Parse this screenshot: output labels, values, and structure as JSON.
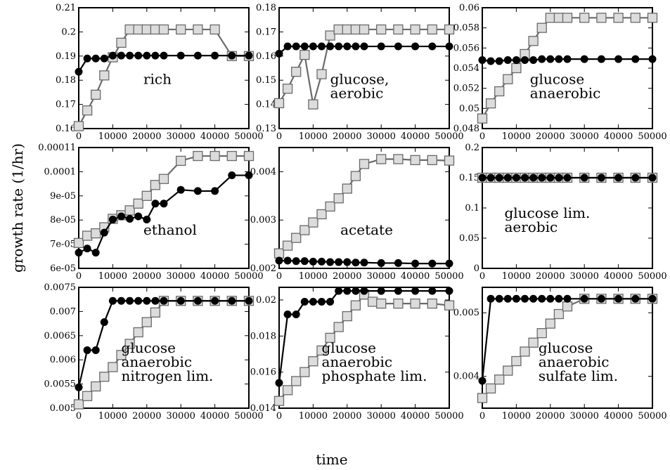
{
  "xlabel": "time",
  "ylabel": "growth rate (1/hr)",
  "series_colors": {
    "gray": "#dcdcdc",
    "gray_edge": "#6a6a6a",
    "black": "#000000"
  },
  "chart_data": [
    {
      "type": "line",
      "label": [
        "rich"
      ],
      "xlim": [
        0,
        50000
      ],
      "ylim": [
        0.16,
        0.21
      ],
      "xticks": [
        "0",
        "10000",
        "20000",
        "30000",
        "40000",
        "50000"
      ],
      "yticks": [
        "0.16",
        "0.17",
        "0.18",
        "0.19",
        "0.2",
        "0.21"
      ],
      "series": [
        {
          "x": [
            0,
            2500,
            5000,
            7500,
            10000,
            12500,
            15000,
            17500,
            20000,
            22500,
            25000,
            30000,
            35000,
            40000,
            45000,
            50000
          ],
          "values": [
            0.161,
            0.1675,
            0.174,
            0.182,
            0.1895,
            0.1955,
            0.201,
            0.201,
            0.201,
            0.201,
            0.201,
            0.201,
            0.201,
            0.201,
            0.19,
            0.19
          ]
        },
        {
          "x": [
            0,
            2500,
            5000,
            7500,
            10000,
            12500,
            15000,
            17500,
            20000,
            22500,
            25000,
            30000,
            35000,
            40000,
            45000,
            50000
          ],
          "values": [
            0.1835,
            0.189,
            0.189,
            0.189,
            0.1902,
            0.1902,
            0.1902,
            0.1902,
            0.1902,
            0.1902,
            0.1902,
            0.1902,
            0.1902,
            0.1902,
            0.1902,
            0.1902
          ]
        }
      ]
    },
    {
      "type": "line",
      "label": [
        "glucose,",
        "aerobic"
      ],
      "xlim": [
        0,
        50000
      ],
      "ylim": [
        0.13,
        0.18
      ],
      "xticks": [
        "0",
        "10000",
        "20000",
        "30000",
        "40000",
        "50000"
      ],
      "yticks": [
        "0.13",
        "0.14",
        "0.15",
        "0.16",
        "0.17",
        "0.18"
      ],
      "series": [
        {
          "x": [
            0,
            2500,
            5000,
            7500,
            10000,
            12500,
            15000,
            17500,
            20000,
            22500,
            25000,
            30000,
            35000,
            40000,
            45000,
            50000
          ],
          "values": [
            0.1405,
            0.1465,
            0.1535,
            0.1605,
            0.14,
            0.1525,
            0.1685,
            0.171,
            0.171,
            0.171,
            0.171,
            0.171,
            0.171,
            0.171,
            0.171,
            0.171
          ]
        },
        {
          "x": [
            0,
            2500,
            5000,
            7500,
            10000,
            12500,
            15000,
            17500,
            20000,
            22500,
            25000,
            30000,
            35000,
            40000,
            45000,
            50000
          ],
          "values": [
            0.161,
            0.164,
            0.164,
            0.164,
            0.164,
            0.164,
            0.164,
            0.164,
            0.164,
            0.164,
            0.164,
            0.164,
            0.164,
            0.164,
            0.164,
            0.164
          ]
        }
      ]
    },
    {
      "type": "line",
      "label": [
        "glucose",
        "anaerobic"
      ],
      "xlim": [
        0,
        50000
      ],
      "ylim": [
        0.048,
        0.06
      ],
      "xticks": [
        "0",
        "10000",
        "20000",
        "30000",
        "40000",
        "50000"
      ],
      "yticks": [
        "0.048",
        "0.05",
        "0.052",
        "0.054",
        "0.056",
        "0.058",
        "0.06"
      ],
      "series": [
        {
          "x": [
            0,
            2500,
            5000,
            7500,
            10000,
            12500,
            15000,
            17500,
            20000,
            22500,
            25000,
            30000,
            35000,
            40000,
            45000,
            50000
          ],
          "values": [
            0.049,
            0.0505,
            0.0517,
            0.0529,
            0.054,
            0.0554,
            0.0567,
            0.058,
            0.059,
            0.059,
            0.059,
            0.059,
            0.059,
            0.059,
            0.059,
            0.059
          ]
        },
        {
          "x": [
            0,
            2500,
            5000,
            7500,
            10000,
            12500,
            15000,
            17500,
            20000,
            22500,
            25000,
            30000,
            35000,
            40000,
            45000,
            50000
          ],
          "values": [
            0.0548,
            0.0547,
            0.0547,
            0.0548,
            0.0548,
            0.0548,
            0.0548,
            0.0549,
            0.0549,
            0.0549,
            0.0549,
            0.0549,
            0.0549,
            0.0549,
            0.0549,
            0.0549
          ]
        }
      ]
    },
    {
      "type": "line",
      "label": [
        "ethanol"
      ],
      "xlim": [
        0,
        50000
      ],
      "ylim": [
        6e-05,
        0.00011
      ],
      "xticks": [
        "0",
        "10000",
        "20000",
        "30000",
        "40000",
        "50000"
      ],
      "yticks": [
        "6e-05",
        "7e-05",
        "8e-05",
        "9e-05",
        "0.0001",
        "0.00011"
      ],
      "series": [
        {
          "x": [
            0,
            2500,
            5000,
            7500,
            10000,
            12500,
            15000,
            17500,
            20000,
            22500,
            25000,
            30000,
            35000,
            40000,
            45000,
            50000
          ],
          "values": [
            7.05e-05,
            7.35e-05,
            7.45e-05,
            7.7e-05,
            8.05e-05,
            8.2e-05,
            8.4e-05,
            8.68e-05,
            9e-05,
            9.45e-05,
            9.7e-05,
            0.0001045,
            0.0001065,
            0.0001065,
            0.0001065,
            0.0001065
          ]
        },
        {
          "x": [
            0,
            2500,
            5000,
            7500,
            10000,
            12500,
            15000,
            17500,
            20000,
            22500,
            25000,
            30000,
            35000,
            40000,
            45000,
            50000
          ],
          "values": [
            6.65e-05,
            6.82e-05,
            6.65e-05,
            7.48e-05,
            8.02e-05,
            8.15e-05,
            8.05e-05,
            8.15e-05,
            8.02e-05,
            8.68e-05,
            8.68e-05,
            9.25e-05,
            9.2e-05,
            9.2e-05,
            9.85e-05,
            9.85e-05
          ]
        }
      ]
    },
    {
      "type": "line",
      "label": [
        "acetate"
      ],
      "xlim": [
        0,
        50000
      ],
      "ylim": [
        0.002,
        0.0045
      ],
      "xticks": [
        "0",
        "10000",
        "20000",
        "30000",
        "40000",
        "50000"
      ],
      "yticks": [
        "0.002",
        "0.003",
        "0.004"
      ],
      "series": [
        {
          "x": [
            0,
            2500,
            5000,
            7500,
            10000,
            12500,
            15000,
            17500,
            20000,
            22500,
            25000,
            30000,
            35000,
            40000,
            45000,
            50000
          ],
          "values": [
            0.00231,
            0.00247,
            0.00263,
            0.00279,
            0.00295,
            0.00312,
            0.00328,
            0.00345,
            0.00365,
            0.00391,
            0.00416,
            0.00426,
            0.00426,
            0.00424,
            0.00424,
            0.00423
          ]
        },
        {
          "x": [
            0,
            2500,
            5000,
            7500,
            10000,
            12500,
            15000,
            17500,
            20000,
            22500,
            25000,
            30000,
            35000,
            40000,
            45000,
            50000
          ],
          "values": [
            0.00216,
            0.00216,
            0.00215,
            0.00215,
            0.00214,
            0.00214,
            0.00213,
            0.00213,
            0.00213,
            0.00212,
            0.00212,
            0.00211,
            0.00211,
            0.0021,
            0.0021,
            0.0021
          ]
        }
      ]
    },
    {
      "type": "line",
      "label": [
        "glucose lim.",
        "aerobic"
      ],
      "xlim": [
        0,
        50000
      ],
      "ylim": [
        0,
        0.2
      ],
      "xticks": [
        "0",
        "10000",
        "20000",
        "30000",
        "40000",
        "50000"
      ],
      "yticks": [
        "0",
        "0.05",
        "0.1",
        "0.15",
        "0.2"
      ],
      "series": [
        {
          "x": [
            0,
            2500,
            5000,
            7500,
            10000,
            12500,
            15000,
            17500,
            20000,
            22500,
            25000,
            30000,
            35000,
            40000,
            45000,
            50000
          ],
          "values": [
            0.15,
            0.15,
            0.15,
            0.15,
            0.15,
            0.15,
            0.15,
            0.15,
            0.15,
            0.15,
            0.15,
            0.15,
            0.15,
            0.15,
            0.15,
            0.15
          ]
        },
        {
          "x": [
            0,
            2500,
            5000,
            7500,
            10000,
            12500,
            15000,
            17500,
            20000,
            22500,
            25000,
            30000,
            35000,
            40000,
            45000,
            50000
          ],
          "values": [
            0.15,
            0.15,
            0.15,
            0.15,
            0.15,
            0.15,
            0.15,
            0.15,
            0.15,
            0.15,
            0.15,
            0.15,
            0.15,
            0.15,
            0.15,
            0.15
          ]
        }
      ]
    },
    {
      "type": "line",
      "label": [
        "glucose",
        "anaerobic",
        "nitrogen lim."
      ],
      "xlim": [
        0,
        50000
      ],
      "ylim": [
        0.005,
        0.0075
      ],
      "xticks": [
        "0",
        "10000",
        "20000",
        "30000",
        "40000",
        "50000"
      ],
      "yticks": [
        "0.005",
        "0.0055",
        "0.006",
        "0.0065",
        "0.007",
        "0.0075"
      ],
      "series": [
        {
          "x": [
            0,
            2500,
            5000,
            7500,
            10000,
            12500,
            15000,
            17500,
            20000,
            22500,
            25000,
            30000,
            35000,
            40000,
            45000,
            50000
          ],
          "values": [
            0.00508,
            0.00525,
            0.00545,
            0.00565,
            0.00585,
            0.0061,
            0.00633,
            0.00657,
            0.00678,
            0.00698,
            0.00722,
            0.00722,
            0.00722,
            0.00722,
            0.00722,
            0.00722
          ]
        },
        {
          "x": [
            0,
            2500,
            5000,
            7500,
            10000,
            12500,
            15000,
            17500,
            20000,
            22500,
            25000,
            30000,
            35000,
            40000,
            45000,
            50000
          ],
          "values": [
            0.00543,
            0.0062,
            0.0062,
            0.00678,
            0.00722,
            0.00722,
            0.00722,
            0.00722,
            0.00722,
            0.00722,
            0.00722,
            0.00722,
            0.00722,
            0.00722,
            0.00722,
            0.00722
          ]
        }
      ]
    },
    {
      "type": "line",
      "label": [
        "glucose",
        "anaerobic",
        "phosphate lim."
      ],
      "xlim": [
        0,
        50000
      ],
      "ylim": [
        0.014,
        0.0207
      ],
      "xticks": [
        "0",
        "10000",
        "20000",
        "30000",
        "40000",
        "50000"
      ],
      "yticks": [
        "0.014",
        "0.016",
        "0.018",
        "0.02"
      ],
      "series": [
        {
          "x": [
            0,
            2500,
            5000,
            7500,
            10000,
            12500,
            15000,
            17500,
            20000,
            22500,
            25000,
            27500,
            30000,
            35000,
            40000,
            45000,
            50000
          ],
          "values": [
            0.0144,
            0.015,
            0.0155,
            0.016,
            0.0166,
            0.0172,
            0.0179,
            0.0185,
            0.0191,
            0.0197,
            0.0203,
            0.0199,
            0.0198,
            0.0198,
            0.0198,
            0.0198,
            0.0197
          ]
        },
        {
          "x": [
            0,
            2500,
            5000,
            7500,
            10000,
            12500,
            15000,
            17500,
            20000,
            22500,
            25000,
            30000,
            35000,
            40000,
            45000,
            50000
          ],
          "values": [
            0.0154,
            0.0192,
            0.0192,
            0.0199,
            0.0199,
            0.0199,
            0.0199,
            0.0205,
            0.0205,
            0.0205,
            0.0205,
            0.0205,
            0.0205,
            0.0205,
            0.0205,
            0.0205
          ]
        }
      ]
    },
    {
      "type": "line",
      "label": [
        "glucose",
        "anaerobic",
        "sulfate lim."
      ],
      "xlim": [
        0,
        50000
      ],
      "ylim": [
        0.0035,
        0.0054
      ],
      "xticks": [
        "0",
        "10000",
        "20000",
        "30000",
        "40000",
        "50000"
      ],
      "yticks": [
        "0.004",
        "0.005"
      ],
      "series": [
        {
          "x": [
            0,
            2500,
            5000,
            7500,
            10000,
            12500,
            15000,
            17500,
            20000,
            22500,
            25000,
            30000,
            35000,
            40000,
            45000,
            50000
          ],
          "values": [
            0.00366,
            0.00381,
            0.00395,
            0.00409,
            0.00424,
            0.00439,
            0.00453,
            0.00468,
            0.00483,
            0.00498,
            0.0051,
            0.00522,
            0.00522,
            0.00522,
            0.00522,
            0.00522
          ]
        },
        {
          "x": [
            0,
            2500,
            5000,
            7500,
            10000,
            12500,
            15000,
            17500,
            20000,
            22500,
            25000,
            30000,
            35000,
            40000,
            45000,
            50000
          ],
          "values": [
            0.00393,
            0.00522,
            0.00522,
            0.00522,
            0.00522,
            0.00522,
            0.00522,
            0.00522,
            0.00522,
            0.00522,
            0.00522,
            0.00522,
            0.00522,
            0.00522,
            0.00522,
            0.00522
          ]
        }
      ]
    }
  ]
}
